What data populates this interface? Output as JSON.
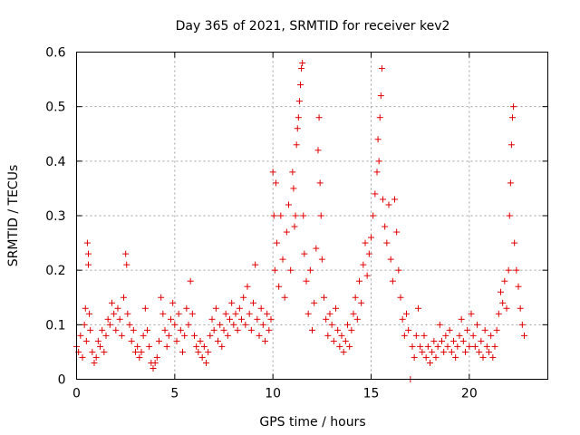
{
  "chart_data": {
    "type": "scatter",
    "title": "Day 365 of 2021, SRMTID for receiver kev2",
    "xlabel": "GPS time / hours",
    "ylabel": "SRMTID / TECUs",
    "xlim": [
      0,
      24
    ],
    "ylim": [
      0,
      0.6
    ],
    "xticks": [
      0,
      5,
      10,
      15,
      20
    ],
    "xtick_labels": [
      "0",
      "5",
      "10",
      "15",
      "20"
    ],
    "yticks": [
      0,
      0.1,
      0.2,
      0.3,
      0.4,
      0.5,
      0.6
    ],
    "ytick_labels": [
      "0",
      "0.1",
      "0.2",
      "0.3",
      "0.4",
      "0.5",
      "0.6"
    ],
    "grid": true,
    "marker": "+",
    "color": "#e00000",
    "series": [
      {
        "name": "kev2",
        "points": [
          [
            0.0,
            0.06
          ],
          [
            0.1,
            0.05
          ],
          [
            0.2,
            0.08
          ],
          [
            0.3,
            0.04
          ],
          [
            0.4,
            0.1
          ],
          [
            0.45,
            0.13
          ],
          [
            0.5,
            0.07
          ],
          [
            0.55,
            0.25
          ],
          [
            0.6,
            0.23
          ],
          [
            0.6,
            0.21
          ],
          [
            0.65,
            0.12
          ],
          [
            0.7,
            0.09
          ],
          [
            0.8,
            0.05
          ],
          [
            0.9,
            0.03
          ],
          [
            1.0,
            0.04
          ],
          [
            1.1,
            0.07
          ],
          [
            1.2,
            0.06
          ],
          [
            1.3,
            0.09
          ],
          [
            1.4,
            0.05
          ],
          [
            1.5,
            0.08
          ],
          [
            1.6,
            0.11
          ],
          [
            1.7,
            0.1
          ],
          [
            1.8,
            0.14
          ],
          [
            1.9,
            0.12
          ],
          [
            2.0,
            0.09
          ],
          [
            2.1,
            0.13
          ],
          [
            2.2,
            0.11
          ],
          [
            2.3,
            0.08
          ],
          [
            2.4,
            0.15
          ],
          [
            2.5,
            0.23
          ],
          [
            2.55,
            0.21
          ],
          [
            2.6,
            0.12
          ],
          [
            2.7,
            0.1
          ],
          [
            2.8,
            0.07
          ],
          [
            2.9,
            0.09
          ],
          [
            3.0,
            0.05
          ],
          [
            3.1,
            0.06
          ],
          [
            3.2,
            0.04
          ],
          [
            3.3,
            0.05
          ],
          [
            3.4,
            0.08
          ],
          [
            3.5,
            0.13
          ],
          [
            3.6,
            0.09
          ],
          [
            3.7,
            0.06
          ],
          [
            3.8,
            0.03
          ],
          [
            3.9,
            0.02
          ],
          [
            4.0,
            0.03
          ],
          [
            4.1,
            0.04
          ],
          [
            4.2,
            0.07
          ],
          [
            4.3,
            0.15
          ],
          [
            4.4,
            0.12
          ],
          [
            4.5,
            0.09
          ],
          [
            4.6,
            0.06
          ],
          [
            4.7,
            0.08
          ],
          [
            4.8,
            0.11
          ],
          [
            4.9,
            0.14
          ],
          [
            5.0,
            0.1
          ],
          [
            5.1,
            0.07
          ],
          [
            5.2,
            0.12
          ],
          [
            5.3,
            0.09
          ],
          [
            5.4,
            0.05
          ],
          [
            5.5,
            0.08
          ],
          [
            5.6,
            0.13
          ],
          [
            5.7,
            0.1
          ],
          [
            5.8,
            0.18
          ],
          [
            5.9,
            0.12
          ],
          [
            6.0,
            0.08
          ],
          [
            6.1,
            0.06
          ],
          [
            6.2,
            0.05
          ],
          [
            6.3,
            0.07
          ],
          [
            6.4,
            0.04
          ],
          [
            6.5,
            0.06
          ],
          [
            6.6,
            0.03
          ],
          [
            6.7,
            0.05
          ],
          [
            6.8,
            0.08
          ],
          [
            6.9,
            0.11
          ],
          [
            7.0,
            0.09
          ],
          [
            7.1,
            0.13
          ],
          [
            7.2,
            0.07
          ],
          [
            7.3,
            0.1
          ],
          [
            7.4,
            0.06
          ],
          [
            7.5,
            0.09
          ],
          [
            7.6,
            0.12
          ],
          [
            7.7,
            0.08
          ],
          [
            7.8,
            0.11
          ],
          [
            7.9,
            0.14
          ],
          [
            8.0,
            0.1
          ],
          [
            8.1,
            0.12
          ],
          [
            8.2,
            0.09
          ],
          [
            8.3,
            0.13
          ],
          [
            8.4,
            0.11
          ],
          [
            8.5,
            0.15
          ],
          [
            8.6,
            0.1
          ],
          [
            8.7,
            0.17
          ],
          [
            8.8,
            0.12
          ],
          [
            8.9,
            0.09
          ],
          [
            9.0,
            0.14
          ],
          [
            9.1,
            0.21
          ],
          [
            9.2,
            0.11
          ],
          [
            9.3,
            0.08
          ],
          [
            9.4,
            0.13
          ],
          [
            9.5,
            0.1
          ],
          [
            9.6,
            0.07
          ],
          [
            9.7,
            0.12
          ],
          [
            9.8,
            0.09
          ],
          [
            9.9,
            0.11
          ],
          [
            10.0,
            0.38
          ],
          [
            10.05,
            0.3
          ],
          [
            10.1,
            0.2
          ],
          [
            10.15,
            0.36
          ],
          [
            10.2,
            0.25
          ],
          [
            10.3,
            0.17
          ],
          [
            10.4,
            0.3
          ],
          [
            10.5,
            0.22
          ],
          [
            10.6,
            0.15
          ],
          [
            10.7,
            0.27
          ],
          [
            10.8,
            0.32
          ],
          [
            10.9,
            0.2
          ],
          [
            11.0,
            0.38
          ],
          [
            11.05,
            0.35
          ],
          [
            11.1,
            0.28
          ],
          [
            11.15,
            0.3
          ],
          [
            11.2,
            0.43
          ],
          [
            11.25,
            0.46
          ],
          [
            11.3,
            0.48
          ],
          [
            11.35,
            0.51
          ],
          [
            11.4,
            0.54
          ],
          [
            11.45,
            0.57
          ],
          [
            11.5,
            0.58
          ],
          [
            11.55,
            0.3
          ],
          [
            11.6,
            0.23
          ],
          [
            11.7,
            0.18
          ],
          [
            11.8,
            0.12
          ],
          [
            11.9,
            0.2
          ],
          [
            12.0,
            0.09
          ],
          [
            12.1,
            0.14
          ],
          [
            12.2,
            0.24
          ],
          [
            12.3,
            0.42
          ],
          [
            12.35,
            0.48
          ],
          [
            12.4,
            0.36
          ],
          [
            12.45,
            0.3
          ],
          [
            12.5,
            0.22
          ],
          [
            12.6,
            0.15
          ],
          [
            12.7,
            0.11
          ],
          [
            12.8,
            0.08
          ],
          [
            12.9,
            0.12
          ],
          [
            13.0,
            0.1
          ],
          [
            13.1,
            0.07
          ],
          [
            13.2,
            0.13
          ],
          [
            13.3,
            0.09
          ],
          [
            13.4,
            0.06
          ],
          [
            13.5,
            0.08
          ],
          [
            13.6,
            0.05
          ],
          [
            13.7,
            0.07
          ],
          [
            13.8,
            0.1
          ],
          [
            13.9,
            0.06
          ],
          [
            14.0,
            0.09
          ],
          [
            14.1,
            0.12
          ],
          [
            14.2,
            0.15
          ],
          [
            14.3,
            0.11
          ],
          [
            14.4,
            0.18
          ],
          [
            14.5,
            0.14
          ],
          [
            14.6,
            0.21
          ],
          [
            14.7,
            0.25
          ],
          [
            14.8,
            0.19
          ],
          [
            14.9,
            0.23
          ],
          [
            15.0,
            0.26
          ],
          [
            15.1,
            0.3
          ],
          [
            15.2,
            0.34
          ],
          [
            15.3,
            0.38
          ],
          [
            15.35,
            0.44
          ],
          [
            15.4,
            0.4
          ],
          [
            15.45,
            0.48
          ],
          [
            15.5,
            0.52
          ],
          [
            15.55,
            0.57
          ],
          [
            15.6,
            0.33
          ],
          [
            15.7,
            0.28
          ],
          [
            15.8,
            0.25
          ],
          [
            15.9,
            0.32
          ],
          [
            16.0,
            0.22
          ],
          [
            16.1,
            0.18
          ],
          [
            16.2,
            0.33
          ],
          [
            16.3,
            0.27
          ],
          [
            16.4,
            0.2
          ],
          [
            16.5,
            0.15
          ],
          [
            16.6,
            0.11
          ],
          [
            16.7,
            0.08
          ],
          [
            16.8,
            0.12
          ],
          [
            16.9,
            0.09
          ],
          [
            17.0,
            0.0
          ],
          [
            17.1,
            0.06
          ],
          [
            17.2,
            0.04
          ],
          [
            17.3,
            0.08
          ],
          [
            17.4,
            0.13
          ],
          [
            17.5,
            0.06
          ],
          [
            17.6,
            0.05
          ],
          [
            17.7,
            0.08
          ],
          [
            17.8,
            0.04
          ],
          [
            17.9,
            0.06
          ],
          [
            18.0,
            0.03
          ],
          [
            18.1,
            0.05
          ],
          [
            18.2,
            0.07
          ],
          [
            18.3,
            0.04
          ],
          [
            18.4,
            0.06
          ],
          [
            18.5,
            0.1
          ],
          [
            18.6,
            0.07
          ],
          [
            18.7,
            0.05
          ],
          [
            18.8,
            0.08
          ],
          [
            18.9,
            0.06
          ],
          [
            19.0,
            0.09
          ],
          [
            19.1,
            0.05
          ],
          [
            19.2,
            0.07
          ],
          [
            19.3,
            0.04
          ],
          [
            19.4,
            0.06
          ],
          [
            19.5,
            0.08
          ],
          [
            19.6,
            0.11
          ],
          [
            19.7,
            0.07
          ],
          [
            19.8,
            0.05
          ],
          [
            19.9,
            0.09
          ],
          [
            20.0,
            0.06
          ],
          [
            20.1,
            0.12
          ],
          [
            20.2,
            0.08
          ],
          [
            20.3,
            0.06
          ],
          [
            20.4,
            0.1
          ],
          [
            20.5,
            0.05
          ],
          [
            20.6,
            0.07
          ],
          [
            20.7,
            0.04
          ],
          [
            20.8,
            0.09
          ],
          [
            20.9,
            0.06
          ],
          [
            21.0,
            0.05
          ],
          [
            21.1,
            0.08
          ],
          [
            21.2,
            0.04
          ],
          [
            21.3,
            0.06
          ],
          [
            21.4,
            0.09
          ],
          [
            21.5,
            0.12
          ],
          [
            21.6,
            0.16
          ],
          [
            21.7,
            0.14
          ],
          [
            21.8,
            0.18
          ],
          [
            21.9,
            0.13
          ],
          [
            22.0,
            0.2
          ],
          [
            22.05,
            0.3
          ],
          [
            22.1,
            0.36
          ],
          [
            22.15,
            0.43
          ],
          [
            22.2,
            0.48
          ],
          [
            22.25,
            0.5
          ],
          [
            22.3,
            0.25
          ],
          [
            22.4,
            0.2
          ],
          [
            22.5,
            0.17
          ],
          [
            22.6,
            0.13
          ],
          [
            22.7,
            0.1
          ],
          [
            22.8,
            0.08
          ]
        ]
      }
    ]
  }
}
